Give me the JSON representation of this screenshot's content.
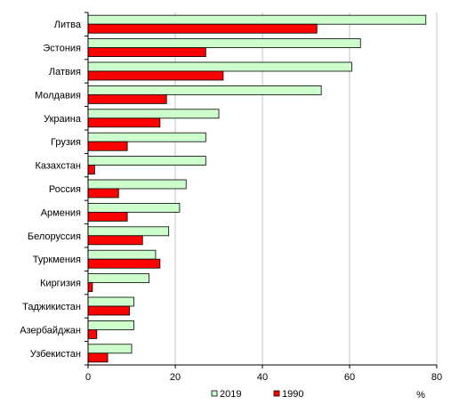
{
  "chart_data": {
    "type": "bar",
    "orientation": "horizontal",
    "categories": [
      "Литва",
      "Эстония",
      "Латвия",
      "Молдавия",
      "Украина",
      "Грузия",
      "Казахстан",
      "Россия",
      "Армения",
      "Белоруссия",
      "Туркмения",
      "Киргизия",
      "Таджикистан",
      "Азербайджан",
      "Узбекистан"
    ],
    "series": [
      {
        "name": "2019",
        "color": "#ccffcc",
        "values": [
          77.5,
          62.5,
          60.5,
          53.5,
          30.0,
          27.0,
          27.0,
          22.5,
          21.0,
          18.5,
          15.5,
          14.0,
          10.5,
          10.5,
          10.0
        ]
      },
      {
        "name": "1990",
        "color": "#ff0000",
        "values": [
          52.5,
          27.0,
          31.0,
          18.0,
          16.5,
          9.0,
          1.5,
          7.0,
          9.0,
          12.5,
          16.5,
          1.0,
          9.5,
          2.0,
          4.5
        ]
      }
    ],
    "xlim": [
      0,
      80
    ],
    "xticks": [
      0,
      20,
      40,
      60,
      80
    ],
    "xlabel": "%",
    "grid": "vertical",
    "legend": "bottom"
  }
}
